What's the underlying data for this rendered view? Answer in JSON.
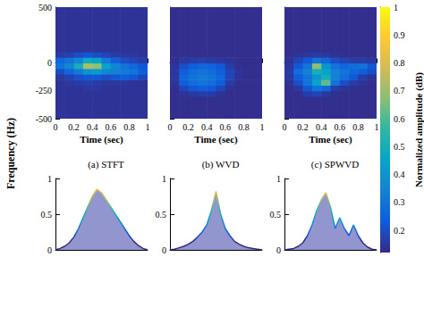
{
  "ylabel": "Frequency (Hz)",
  "colorbar": {
    "label": "Normalized amplitude (dB)",
    "range": [
      0.12,
      1
    ],
    "ticks": [
      0.2,
      0.3,
      0.4,
      0.5,
      0.6,
      0.7,
      0.8,
      0.9,
      1
    ]
  },
  "chart_data": [
    {
      "type": "heatmap",
      "title": "(a) STFT",
      "xlabel": "Time (sec)",
      "xlim": [
        0,
        1
      ],
      "xticks": [
        0,
        0.2,
        0.4,
        0.6,
        0.8,
        1
      ],
      "ylim": [
        -500,
        500
      ],
      "yticks": [
        -500,
        -250,
        0,
        500
      ],
      "tick_labels": true,
      "time_edges": [
        0,
        0.1,
        0.2,
        0.3,
        0.4,
        0.5,
        0.6,
        0.7,
        0.8,
        0.9,
        1
      ],
      "freq_edges": [
        -500,
        -300,
        -250,
        -200,
        -150,
        -100,
        -50,
        0,
        50,
        100,
        500
      ],
      "cells": [
        [
          0.14,
          0.14,
          0.14,
          0.14,
          0.14,
          0.14,
          0.14,
          0.14,
          0.14,
          0.14
        ],
        [
          0.14,
          0.14,
          0.14,
          0.14,
          0.14,
          0.14,
          0.14,
          0.14,
          0.14,
          0.14
        ],
        [
          0.14,
          0.14,
          0.14,
          0.15,
          0.15,
          0.14,
          0.14,
          0.14,
          0.14,
          0.14
        ],
        [
          0.14,
          0.15,
          0.16,
          0.17,
          0.16,
          0.15,
          0.15,
          0.15,
          0.14,
          0.14
        ],
        [
          0.15,
          0.17,
          0.2,
          0.22,
          0.22,
          0.2,
          0.22,
          0.24,
          0.22,
          0.18
        ],
        [
          0.2,
          0.26,
          0.32,
          0.4,
          0.42,
          0.36,
          0.34,
          0.32,
          0.3,
          0.24
        ],
        [
          0.3,
          0.36,
          0.5,
          0.72,
          0.68,
          0.45,
          0.36,
          0.3,
          0.26,
          0.22
        ],
        [
          0.26,
          0.3,
          0.36,
          0.48,
          0.45,
          0.32,
          0.24,
          0.2,
          0.18,
          0.16
        ],
        [
          0.16,
          0.17,
          0.2,
          0.22,
          0.2,
          0.18,
          0.16,
          0.15,
          0.15,
          0.14
        ],
        [
          0.14,
          0.14,
          0.14,
          0.14,
          0.14,
          0.14,
          0.14,
          0.14,
          0.14,
          0.14
        ]
      ]
    },
    {
      "type": "heatmap",
      "title": "(b) WVD",
      "xlabel": "Time (sec)",
      "xlim": [
        0,
        1
      ],
      "xticks": [
        0,
        0.2,
        0.4,
        0.6,
        0.8,
        1
      ],
      "ylim": [
        -500,
        500
      ],
      "yticks": [
        -500,
        -250,
        0,
        500
      ],
      "tick_labels": "x",
      "time_edges": [
        0,
        0.1,
        0.2,
        0.3,
        0.4,
        0.5,
        0.6,
        0.7,
        0.8,
        0.9,
        1
      ],
      "freq_edges": [
        -500,
        -300,
        -250,
        -200,
        -150,
        -100,
        -50,
        0,
        50,
        100,
        500
      ],
      "cells": [
        [
          0.13,
          0.13,
          0.13,
          0.13,
          0.13,
          0.13,
          0.13,
          0.13,
          0.13,
          0.13
        ],
        [
          0.13,
          0.14,
          0.15,
          0.16,
          0.16,
          0.14,
          0.13,
          0.13,
          0.13,
          0.13
        ],
        [
          0.13,
          0.18,
          0.22,
          0.24,
          0.22,
          0.18,
          0.14,
          0.13,
          0.13,
          0.13
        ],
        [
          0.14,
          0.24,
          0.28,
          0.3,
          0.28,
          0.24,
          0.16,
          0.13,
          0.13,
          0.13
        ],
        [
          0.15,
          0.26,
          0.3,
          0.32,
          0.3,
          0.26,
          0.18,
          0.14,
          0.13,
          0.13
        ],
        [
          0.15,
          0.24,
          0.28,
          0.3,
          0.28,
          0.24,
          0.18,
          0.14,
          0.13,
          0.13
        ],
        [
          0.14,
          0.2,
          0.24,
          0.26,
          0.25,
          0.22,
          0.16,
          0.13,
          0.13,
          0.13
        ],
        [
          0.13,
          0.15,
          0.16,
          0.17,
          0.16,
          0.15,
          0.14,
          0.13,
          0.13,
          0.13
        ],
        [
          0.13,
          0.13,
          0.13,
          0.13,
          0.13,
          0.13,
          0.13,
          0.13,
          0.13,
          0.13
        ],
        [
          0.13,
          0.13,
          0.13,
          0.13,
          0.13,
          0.13,
          0.13,
          0.13,
          0.13,
          0.13
        ]
      ]
    },
    {
      "type": "heatmap",
      "title": "(c) SPWVD",
      "xlabel": "Time (sec)",
      "xlim": [
        0,
        1
      ],
      "xticks": [
        0,
        0.2,
        0.4,
        0.6,
        0.8,
        1
      ],
      "ylim": [
        -500,
        500
      ],
      "yticks": [
        -500,
        -250,
        0,
        500
      ],
      "tick_labels": "x",
      "time_edges": [
        0,
        0.1,
        0.2,
        0.3,
        0.4,
        0.5,
        0.6,
        0.7,
        0.8,
        0.9,
        1
      ],
      "freq_edges": [
        -500,
        -300,
        -250,
        -200,
        -150,
        -100,
        -50,
        0,
        50,
        100,
        500
      ],
      "cells": [
        [
          0.13,
          0.13,
          0.13,
          0.13,
          0.13,
          0.13,
          0.13,
          0.13,
          0.13,
          0.13
        ],
        [
          0.13,
          0.13,
          0.16,
          0.18,
          0.15,
          0.13,
          0.13,
          0.13,
          0.13,
          0.13
        ],
        [
          0.13,
          0.15,
          0.22,
          0.3,
          0.26,
          0.16,
          0.14,
          0.13,
          0.13,
          0.13
        ],
        [
          0.14,
          0.2,
          0.3,
          0.45,
          0.62,
          0.3,
          0.2,
          0.16,
          0.14,
          0.13
        ],
        [
          0.15,
          0.24,
          0.3,
          0.4,
          0.5,
          0.34,
          0.28,
          0.22,
          0.16,
          0.14
        ],
        [
          0.16,
          0.28,
          0.34,
          0.5,
          0.45,
          0.35,
          0.3,
          0.26,
          0.24,
          0.2
        ],
        [
          0.15,
          0.22,
          0.3,
          0.68,
          0.4,
          0.3,
          0.26,
          0.28,
          0.3,
          0.22
        ],
        [
          0.14,
          0.18,
          0.22,
          0.3,
          0.26,
          0.2,
          0.18,
          0.16,
          0.16,
          0.15
        ],
        [
          0.13,
          0.14,
          0.15,
          0.16,
          0.15,
          0.14,
          0.13,
          0.13,
          0.13,
          0.13
        ],
        [
          0.13,
          0.13,
          0.13,
          0.13,
          0.13,
          0.13,
          0.13,
          0.13,
          0.13,
          0.13
        ]
      ]
    },
    {
      "type": "area",
      "xlim": [
        0,
        1
      ],
      "ylim": [
        0,
        1
      ],
      "yticks": [
        0,
        0.5,
        1
      ],
      "tick_labels": "y",
      "x": [
        0,
        0.05,
        0.1,
        0.15,
        0.2,
        0.25,
        0.3,
        0.35,
        0.4,
        0.45,
        0.5,
        0.55,
        0.6,
        0.65,
        0.7,
        0.75,
        0.8,
        0.85,
        0.9,
        0.95,
        1
      ],
      "values": [
        0,
        0.02,
        0.05,
        0.1,
        0.18,
        0.3,
        0.45,
        0.6,
        0.75,
        0.85,
        0.8,
        0.7,
        0.6,
        0.5,
        0.4,
        0.3,
        0.2,
        0.12,
        0.06,
        0.02,
        0
      ]
    },
    {
      "type": "area",
      "xlim": [
        0,
        1
      ],
      "ylim": [
        0,
        1
      ],
      "yticks": [
        0,
        0.5,
        1
      ],
      "tick_labels": "y",
      "x": [
        0,
        0.05,
        0.1,
        0.15,
        0.2,
        0.25,
        0.3,
        0.35,
        0.4,
        0.45,
        0.5,
        0.55,
        0.6,
        0.65,
        0.7,
        0.75,
        0.8,
        0.85,
        0.9,
        0.95,
        1
      ],
      "values": [
        0,
        0.01,
        0.03,
        0.05,
        0.08,
        0.12,
        0.18,
        0.25,
        0.35,
        0.55,
        0.82,
        0.5,
        0.3,
        0.2,
        0.12,
        0.08,
        0.05,
        0.03,
        0.02,
        0.01,
        0
      ]
    },
    {
      "type": "area",
      "xlim": [
        0,
        1
      ],
      "ylim": [
        0,
        1
      ],
      "yticks": [
        0,
        0.5,
        1
      ],
      "tick_labels": "y",
      "x": [
        0,
        0.05,
        0.1,
        0.15,
        0.2,
        0.25,
        0.3,
        0.35,
        0.4,
        0.45,
        0.5,
        0.55,
        0.6,
        0.65,
        0.7,
        0.75,
        0.8,
        0.85,
        0.9,
        0.95,
        1
      ],
      "values": [
        0,
        0.01,
        0.02,
        0.05,
        0.1,
        0.2,
        0.35,
        0.55,
        0.7,
        0.8,
        0.6,
        0.3,
        0.45,
        0.3,
        0.2,
        0.35,
        0.2,
        0.1,
        0.04,
        0.01,
        0
      ]
    }
  ]
}
